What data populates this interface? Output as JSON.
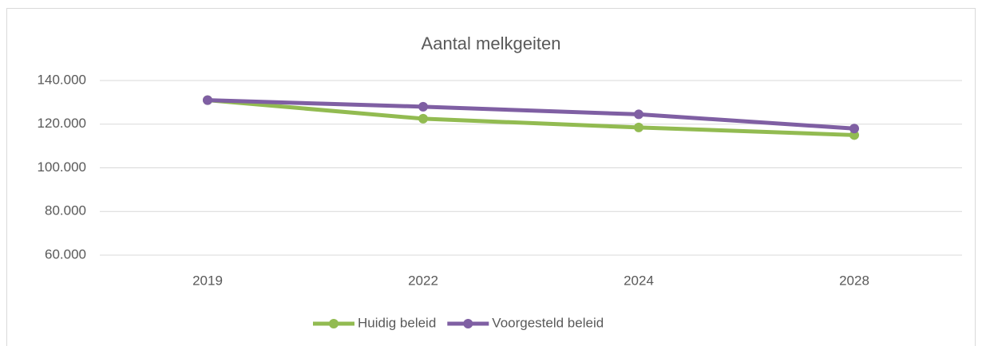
{
  "chart_data": {
    "type": "line",
    "title": "Aantal melkgeiten",
    "categories": [
      "2019",
      "2022",
      "2024",
      "2028"
    ],
    "series": [
      {
        "name": "Huidig beleid",
        "color": "#92bb51",
        "values": [
          131000,
          122500,
          118500,
          115000
        ]
      },
      {
        "name": "Voorgesteld beleid",
        "color": "#7f5fa3",
        "values": [
          131000,
          128000,
          124500,
          118000
        ]
      }
    ],
    "ylim": [
      60000,
      140000
    ],
    "yticks": [
      {
        "value": 60000,
        "label": "60.000"
      },
      {
        "value": 80000,
        "label": "80.000"
      },
      {
        "value": 100000,
        "label": "100.000"
      },
      {
        "value": 120000,
        "label": "120.000"
      },
      {
        "value": 140000,
        "label": "140.000"
      }
    ],
    "grid": true,
    "legend": "bottom"
  }
}
